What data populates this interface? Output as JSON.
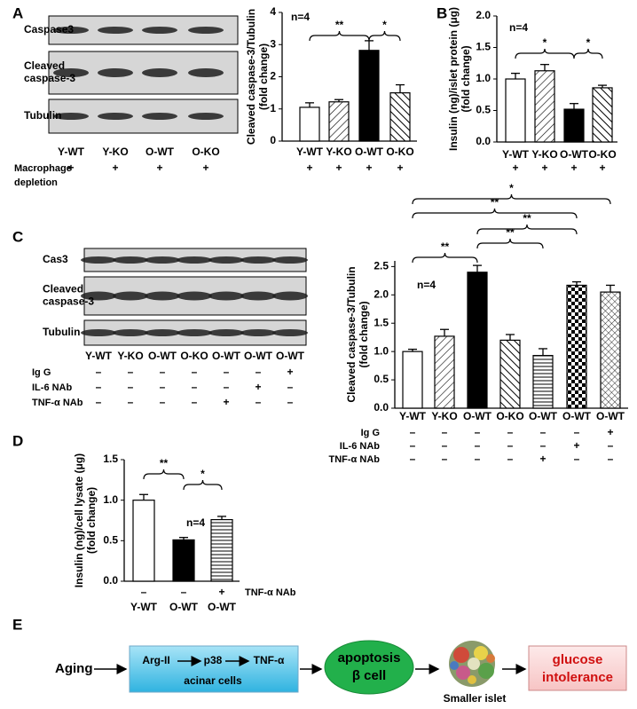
{
  "panels": [
    "A",
    "B",
    "C",
    "D",
    "E"
  ],
  "blots": [
    {
      "rows": [
        [
          "Caspase3"
        ],
        [
          "Cleaved",
          "caspase-3"
        ],
        [
          "Tubulin"
        ]
      ],
      "lanes": [
        "Y-WT",
        "Y-KO",
        "O-WT",
        "O-KO"
      ],
      "treatments": [
        {
          "name": [
            "Macrophage",
            "depletion"
          ],
          "signs": [
            "+",
            "+",
            "+",
            "+"
          ]
        }
      ]
    },
    {
      "rows": [
        [
          "Cas3"
        ],
        [
          "Cleaved",
          "caspase-3"
        ],
        [
          "Tubulin"
        ]
      ],
      "lanes": [
        "Y-WT",
        "Y-KO",
        "O-WT",
        "O-KO",
        "O-WT",
        "O-WT",
        "O-WT"
      ],
      "treatments": [
        {
          "name": [
            "Ig G"
          ],
          "signs": [
            "–",
            "–",
            "–",
            "–",
            "–",
            "–",
            "+"
          ]
        },
        {
          "name": [
            "IL-6 NAb"
          ],
          "signs": [
            "–",
            "–",
            "–",
            "–",
            "–",
            "+",
            "–"
          ]
        },
        {
          "name": [
            "TNF-α NAb"
          ],
          "signs": [
            "–",
            "–",
            "–",
            "–",
            "+",
            "–",
            "–"
          ]
        }
      ]
    }
  ],
  "chart_data": [
    {
      "type": "bar",
      "ylabel": [
        "Cleaved caspase-3/Tubulin",
        "(fold change)"
      ],
      "categories": [
        "Y-WT",
        "Y-KO",
        "O-WT",
        "O-KO"
      ],
      "values": [
        1.05,
        1.22,
        2.82,
        1.5
      ],
      "errors": [
        0.14,
        0.07,
        0.3,
        0.25
      ],
      "fills": [
        "open",
        "hatch",
        "solid",
        "hatch-reverse"
      ],
      "ylim": [
        0,
        4
      ],
      "yticks": [
        0,
        1,
        2,
        3,
        4
      ],
      "annotation": "n=4",
      "significance": [
        "**",
        "*"
      ],
      "treatments": [
        {
          "signs": [
            "+",
            "+",
            "+",
            "+"
          ]
        }
      ]
    },
    {
      "type": "bar",
      "ylabel": [
        "Insulin (ng)/islet protein (μg)",
        "(fold change)"
      ],
      "categories": [
        "Y-WT",
        "Y-KO",
        "O-WT",
        "O-KO"
      ],
      "values": [
        1.0,
        1.13,
        0.52,
        0.86
      ],
      "errors": [
        0.09,
        0.1,
        0.09,
        0.04
      ],
      "fills": [
        "open",
        "hatch",
        "solid",
        "hatch-reverse"
      ],
      "ylim": [
        0,
        2
      ],
      "yticks": [
        {
          "value": 0,
          "label": "0.0"
        },
        0.5,
        {
          "value": 1,
          "label": "1.0"
        },
        1.5,
        {
          "value": 2,
          "label": "2.0"
        }
      ],
      "annotation": "n=4",
      "significance": [
        "*",
        "*"
      ],
      "treatments": [
        {
          "signs": [
            "+",
            "+",
            "+",
            "+"
          ]
        }
      ]
    },
    {
      "type": "bar",
      "ylabel": [
        "Cleaved caspase-3/Tubulin",
        "(fold change)"
      ],
      "categories": [
        "Y-WT",
        "Y-KO",
        "O-WT",
        "O-KO",
        "O-WT",
        "O-WT",
        "O-WT"
      ],
      "values": [
        1.0,
        1.27,
        2.4,
        1.2,
        0.93,
        2.17,
        2.05
      ],
      "errors": [
        0.04,
        0.12,
        0.12,
        0.1,
        0.12,
        0.06,
        0.12
      ],
      "fills": [
        "open",
        "hatch",
        "solid",
        "hatch-reverse",
        "hlines",
        "checker",
        "crosshatch"
      ],
      "ylim": [
        0,
        2.6
      ],
      "yticks": [
        {
          "value": 0,
          "label": "0.0"
        },
        0.5,
        {
          "value": 1,
          "label": "1.0"
        },
        1.5,
        {
          "value": 2,
          "label": "2.0"
        },
        2.5
      ],
      "annotation": "n=4",
      "significance": [
        "**",
        "**",
        "**",
        "**",
        "*"
      ],
      "treatments": [
        {
          "name": "Ig G",
          "signs": [
            "–",
            "–",
            "–",
            "–",
            "–",
            "–",
            "+"
          ]
        },
        {
          "name": "IL-6 NAb",
          "signs": [
            "–",
            "–",
            "–",
            "–",
            "–",
            "+",
            "–"
          ]
        },
        {
          "name": "TNF-α NAb",
          "signs": [
            "–",
            "–",
            "–",
            "–",
            "+",
            "–",
            "–"
          ]
        }
      ]
    },
    {
      "type": "bar",
      "ylabel": [
        "Insulin (ng)/cell lysate (μg)",
        "(fold change)"
      ],
      "categories": [
        "Y-WT",
        "O-WT",
        "O-WT"
      ],
      "values": [
        1.0,
        0.51,
        0.76
      ],
      "errors": [
        0.07,
        0.03,
        0.04
      ],
      "fills": [
        "open",
        "solid",
        "hlines"
      ],
      "ylim": [
        0,
        1.5
      ],
      "yticks": [
        {
          "value": 0,
          "label": "0.0"
        },
        0.5,
        {
          "value": 1,
          "label": "1.0"
        },
        1.5
      ],
      "annotation": "n=4",
      "significance": [
        "**",
        "*"
      ],
      "treatments": [
        {
          "name": "TNF-α NAb",
          "signs": [
            "–",
            "–",
            "+"
          ]
        }
      ]
    }
  ],
  "diagram": {
    "input": "Aging",
    "box": [
      "Arg-II",
      "p38",
      "TNF-α"
    ],
    "box_note": "acinar cells",
    "cell": [
      "apoptosis",
      "β cell"
    ],
    "islet": "Smaller islet",
    "outcome": [
      "glucose",
      "intolerance"
    ]
  }
}
